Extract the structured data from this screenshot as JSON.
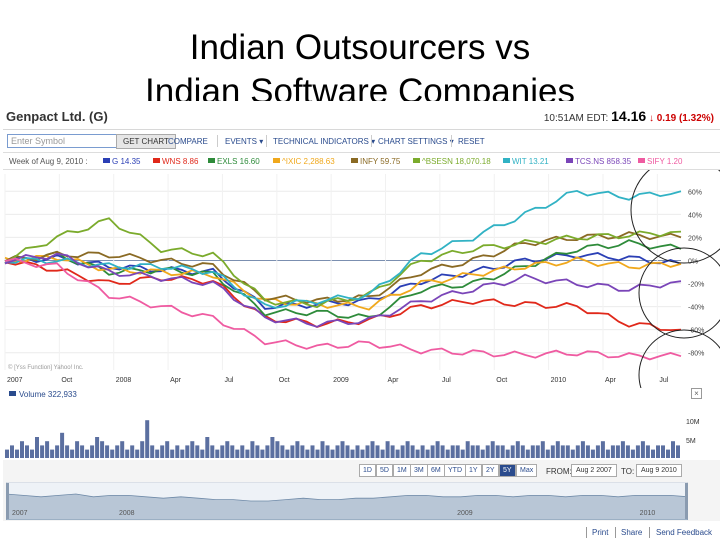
{
  "slide": {
    "title_line1": "Indian Outsourcers vs",
    "title_line2": "Indian Software Companies"
  },
  "header": {
    "company": "Genpact Ltd. (G)",
    "time": "10:51AM EDT:",
    "price": "14.16",
    "change": "0.19 (1.32%)"
  },
  "toolbar": {
    "symbol_placeholder": "Enter Symbol",
    "get_chart": "GET CHART",
    "compare": "COMPARE",
    "events": "EVENTS ▾",
    "indicators": "TECHNICAL INDICATORS ▾",
    "settings": "CHART SETTINGS ▾",
    "reset": "RESET"
  },
  "legend": {
    "week_label": "Week of Aug 9, 2010 :",
    "items": [
      {
        "text": "G 14.35",
        "color": "#2b3fb5"
      },
      {
        "text": "WNS 8.86",
        "color": "#e0281a"
      },
      {
        "text": "EXLS 16.60",
        "color": "#2e8b3a"
      },
      {
        "text": "^IXIC 2,288.63",
        "color": "#f0a81c"
      },
      {
        "text": "INFY 59.75",
        "color": "#8a6a24"
      },
      {
        "text": "^BSESN 18,070.18",
        "color": "#7bab2c"
      },
      {
        "text": "WIT 13.21",
        "color": "#31b2c4"
      },
      {
        "text": "TCS.NS 858.35",
        "color": "#7a45b8"
      },
      {
        "text": "SIFY 1.20",
        "color": "#ef5ba1"
      }
    ]
  },
  "chart_data": {
    "type": "line",
    "title": "Genpact Ltd. (G)",
    "x": [
      "2007-08",
      "2007-10",
      "2008-01",
      "2008-04",
      "2008-07",
      "2008-10",
      "2009-01",
      "2009-04",
      "2009-07",
      "2009-10",
      "2010-01",
      "2010-04",
      "2010-07",
      "2010-08"
    ],
    "x_tick_labels": [
      "2007",
      "Oct",
      "2008",
      "Apr",
      "Jul",
      "Oct",
      "2009",
      "Apr",
      "Jul",
      "Oct",
      "2010",
      "Apr",
      "Jul"
    ],
    "y_tick_labels": [
      "60%",
      "40%",
      "20%",
      "0%",
      "-20%",
      "-40%",
      "-60%",
      "-80%"
    ],
    "ylim": [
      -95,
      75
    ],
    "y_unit": "% change",
    "series": [
      {
        "name": "G",
        "color": "#2b3fb5",
        "values": [
          0,
          2,
          -5,
          -8,
          -10,
          -40,
          -38,
          -35,
          -18,
          -10,
          0,
          5,
          2,
          -3
        ]
      },
      {
        "name": "WNS",
        "color": "#e0281a",
        "values": [
          0,
          -8,
          -20,
          -15,
          -18,
          -50,
          -55,
          -52,
          -40,
          -35,
          -38,
          -40,
          -55,
          -60
        ]
      },
      {
        "name": "EXLS",
        "color": "#2e8b3a",
        "values": [
          0,
          5,
          -10,
          -8,
          -12,
          -45,
          -45,
          -50,
          -25,
          -20,
          -5,
          10,
          15,
          10
        ]
      },
      {
        "name": "^IXIC",
        "color": "#f0a81c",
        "values": [
          0,
          3,
          -8,
          -10,
          -12,
          -35,
          -38,
          -40,
          -20,
          -12,
          -5,
          0,
          -5,
          -3
        ]
      },
      {
        "name": "INFY",
        "color": "#8a6a24",
        "values": [
          0,
          5,
          5,
          0,
          -5,
          -32,
          -35,
          -32,
          -10,
          0,
          15,
          20,
          22,
          20
        ]
      },
      {
        "name": "^BSESN",
        "color": "#7bab2c",
        "values": [
          0,
          20,
          35,
          10,
          5,
          -35,
          -38,
          -30,
          0,
          10,
          15,
          20,
          22,
          25
        ]
      },
      {
        "name": "WIT",
        "color": "#31b2c4",
        "values": [
          0,
          0,
          -5,
          -5,
          -10,
          -40,
          -35,
          -30,
          5,
          20,
          40,
          60,
          55,
          60
        ]
      },
      {
        "name": "TCS.NS",
        "color": "#7a45b8",
        "values": [
          0,
          5,
          -10,
          -15,
          -20,
          -50,
          -55,
          -52,
          -35,
          -25,
          -15,
          -20,
          -25,
          -18
        ]
      },
      {
        "name": "SIFY",
        "color": "#ef5ba1",
        "values": [
          0,
          -5,
          -30,
          -40,
          -50,
          -70,
          -75,
          -72,
          -78,
          -80,
          -82,
          -80,
          -83,
          -83
        ]
      }
    ]
  },
  "volume": {
    "label": "Volume 322,933",
    "y_labels": [
      "10M",
      "5M"
    ],
    "bars": [
      2,
      3,
      2,
      4,
      3,
      2,
      5,
      3,
      4,
      2,
      3,
      6,
      3,
      2,
      4,
      3,
      2,
      3,
      5,
      4,
      3,
      2,
      3,
      4,
      2,
      3,
      2,
      4,
      9,
      3,
      2,
      3,
      4,
      2,
      3,
      2,
      3,
      4,
      3,
      2,
      5,
      3,
      2,
      3,
      4,
      3,
      2,
      3,
      2,
      4,
      3,
      2,
      3,
      5,
      4,
      3,
      2,
      3,
      4,
      3,
      2,
      3,
      2,
      4,
      3,
      2,
      3,
      4,
      3,
      2,
      3,
      2,
      3,
      4,
      3,
      2,
      4,
      3,
      2,
      3,
      4,
      3,
      2,
      3,
      2,
      3,
      4,
      3,
      2,
      3,
      3,
      2,
      4,
      3,
      3,
      2,
      3,
      4,
      3,
      3,
      2,
      3,
      4,
      3,
      2,
      3,
      3,
      4,
      2,
      3,
      4,
      3,
      3,
      2,
      3,
      4,
      3,
      2,
      3,
      4,
      2,
      3,
      3,
      4,
      3,
      2,
      3,
      4,
      3,
      2,
      3,
      3,
      2,
      4,
      3
    ]
  },
  "range": {
    "buttons": [
      "1D",
      "5D",
      "1M",
      "3M",
      "6M",
      "YTD",
      "1Y",
      "2Y",
      "5Y",
      "Max"
    ],
    "active": "5Y",
    "from_label": "FROM:",
    "from_value": "Aug 2 2007",
    "to_label": "TO:",
    "to_value": "Aug 9 2010"
  },
  "navigator": {
    "years": [
      "2007",
      "2008",
      "2009",
      "2010"
    ],
    "values": [
      10,
      9,
      8,
      9,
      10,
      8,
      9,
      9,
      8,
      7,
      8,
      7,
      6,
      6,
      5,
      5,
      6,
      7,
      6,
      6,
      7,
      7,
      8,
      9,
      9,
      8,
      8,
      9,
      9,
      8,
      9,
      9,
      8,
      9,
      9,
      8,
      9,
      9,
      9,
      8
    ]
  },
  "footer": {
    "print": "Print",
    "share": "Share",
    "feedback": "Send Feedback"
  },
  "credit": "© [Yss Function] Yahoo! Inc."
}
